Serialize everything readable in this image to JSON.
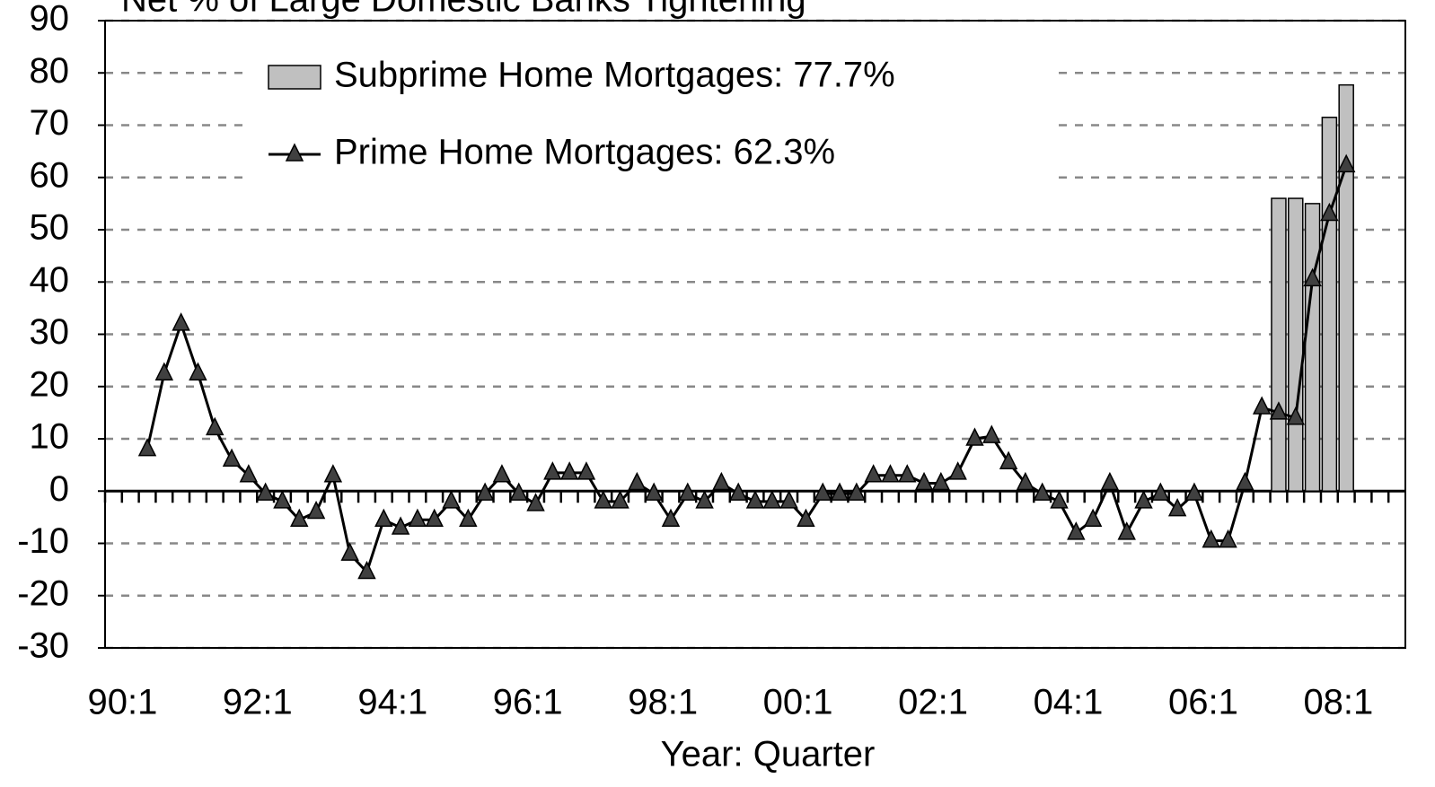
{
  "chart_data": {
    "type": "bar-line",
    "title": "Net % of Large Domestic Banks Tightening",
    "x_label": "Year:  Quarter",
    "categories": [
      "90:1",
      null,
      null,
      null,
      null,
      null,
      null,
      null,
      "92:1",
      null,
      null,
      null,
      null,
      null,
      null,
      null,
      "94:1",
      null,
      null,
      null,
      null,
      null,
      null,
      null,
      "96:1",
      null,
      null,
      null,
      null,
      null,
      null,
      null,
      "98:1",
      null,
      null,
      null,
      null,
      null,
      null,
      null,
      "00:1",
      null,
      null,
      null,
      null,
      null,
      null,
      null,
      "02:1",
      null,
      null,
      null,
      null,
      null,
      null,
      null,
      "04:1",
      null,
      null,
      null,
      null,
      null,
      null,
      null,
      "06:1",
      null,
      null,
      null,
      null,
      null,
      null,
      null,
      "08:1",
      null,
      null,
      null,
      null
    ],
    "series": [
      {
        "name": "Subprime Home Mortgages: 77.7%",
        "kind": "bar",
        "color": "#c0c0c0",
        "values": [
          null,
          null,
          null,
          null,
          null,
          null,
          null,
          null,
          null,
          null,
          null,
          null,
          null,
          null,
          null,
          null,
          null,
          null,
          null,
          null,
          null,
          null,
          null,
          null,
          null,
          null,
          null,
          null,
          null,
          null,
          null,
          null,
          null,
          null,
          null,
          null,
          null,
          null,
          null,
          null,
          null,
          null,
          null,
          null,
          null,
          null,
          null,
          null,
          null,
          null,
          null,
          null,
          null,
          null,
          null,
          null,
          null,
          null,
          null,
          null,
          null,
          null,
          null,
          null,
          null,
          null,
          null,
          null,
          null,
          56,
          56,
          55,
          71.5,
          77.7,
          null,
          null,
          null
        ]
      },
      {
        "name": "Prime Home Mortgages: 62.3%",
        "kind": "line",
        "color": "#000000",
        "marker_color": "#404040",
        "values": [
          null,
          null,
          8,
          22.5,
          32,
          22.5,
          12,
          6,
          3,
          -0.5,
          -2,
          -5.5,
          -4,
          3,
          -12,
          -15.5,
          -5.5,
          -7,
          -5.5,
          -5.5,
          -2,
          -5.5,
          -0.5,
          3,
          -0.5,
          -2.5,
          3.5,
          3.5,
          3.5,
          -2,
          -2,
          1.5,
          -0.5,
          -5.5,
          -0.5,
          -2,
          1.5,
          -0.5,
          -2,
          -2,
          -2,
          -5.5,
          -0.5,
          -0.5,
          -0.5,
          3,
          3,
          3,
          1.5,
          1.5,
          3.5,
          10,
          10.5,
          5.5,
          1.5,
          -0.5,
          -2,
          -8,
          -5.5,
          1.5,
          -8,
          -2,
          -0.5,
          -3.5,
          -0.5,
          -9.5,
          -9.5,
          1.5,
          16,
          15,
          14,
          40.5,
          53,
          62.3,
          null,
          null,
          null
        ]
      }
    ],
    "ylim": [
      -30,
      90
    ],
    "yticks": [
      -30,
      -20,
      -10,
      0,
      10,
      20,
      30,
      40,
      50,
      60,
      70,
      80,
      90
    ],
    "grid": true
  }
}
